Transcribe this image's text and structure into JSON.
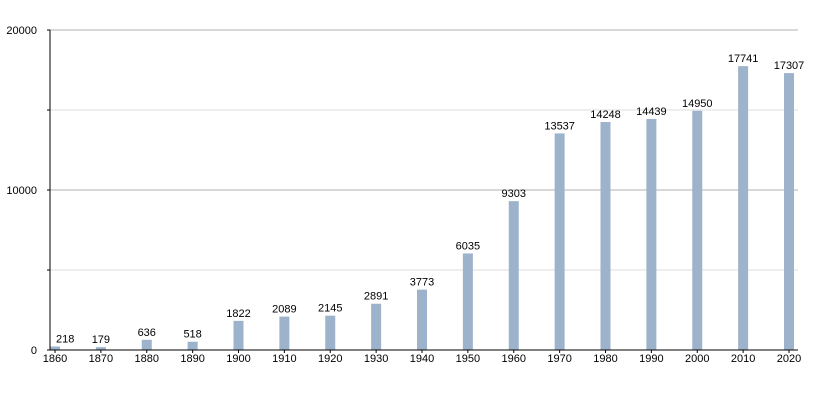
{
  "chart_data": {
    "type": "bar",
    "title": "",
    "xlabel": "",
    "ylabel": "",
    "categories": [
      "1860",
      "1870",
      "1880",
      "1890",
      "1900",
      "1910",
      "1920",
      "1930",
      "1940",
      "1950",
      "1960",
      "1970",
      "1980",
      "1990",
      "2000",
      "2010",
      "2020"
    ],
    "values": [
      218,
      179,
      636,
      518,
      1822,
      2089,
      2145,
      2891,
      3773,
      6035,
      9303,
      13537,
      14248,
      14439,
      14950,
      17741,
      17307
    ],
    "ylim": [
      0,
      20000
    ],
    "y_major_ticks": [
      0,
      10000,
      20000
    ],
    "y_minor_ticks": [
      5000,
      15000
    ],
    "grid": true,
    "legend": "none",
    "bar_color": "#9db3cb",
    "major_grid_color": "#b0b0b0",
    "minor_grid_color": "#dcdcdc"
  }
}
